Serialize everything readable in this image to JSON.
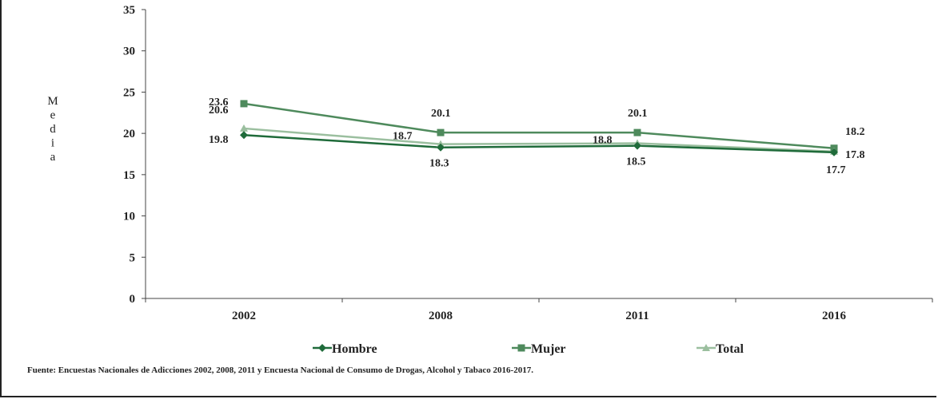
{
  "chart_data": {
    "type": "line",
    "categories": [
      "2002",
      "2008",
      "2011",
      "2016"
    ],
    "series": [
      {
        "name": "Hombre",
        "values": [
          19.8,
          18.3,
          18.5,
          17.7
        ],
        "color": "#1f6b3a",
        "marker": "diamond",
        "labels": [
          "19.8",
          "18.3",
          "18.5",
          "17.7"
        ]
      },
      {
        "name": "Mujer",
        "values": [
          23.6,
          20.1,
          20.1,
          18.2
        ],
        "color": "#4e8a5c",
        "marker": "square",
        "labels": [
          "23.6",
          "20.1",
          "20.1",
          "18.2"
        ]
      },
      {
        "name": "Total",
        "values": [
          20.6,
          18.7,
          18.8,
          17.8
        ],
        "color": "#9bbf9f",
        "marker": "triangle",
        "labels": [
          "20.6",
          "18.7",
          "18.8",
          "17.8"
        ]
      }
    ],
    "ylabel": "Media",
    "ylim": [
      0,
      35
    ],
    "yticks": [
      "0",
      "5",
      "10",
      "15",
      "20",
      "25",
      "30",
      "35"
    ],
    "grid": false,
    "legend": "bottom"
  },
  "footnote": "Fuente: Encuestas Nacionales de Adicciones 2002, 2008, 2011 y Encuesta Nacional de Consumo de Drogas, Alcohol y Tabaco 2016-2017."
}
